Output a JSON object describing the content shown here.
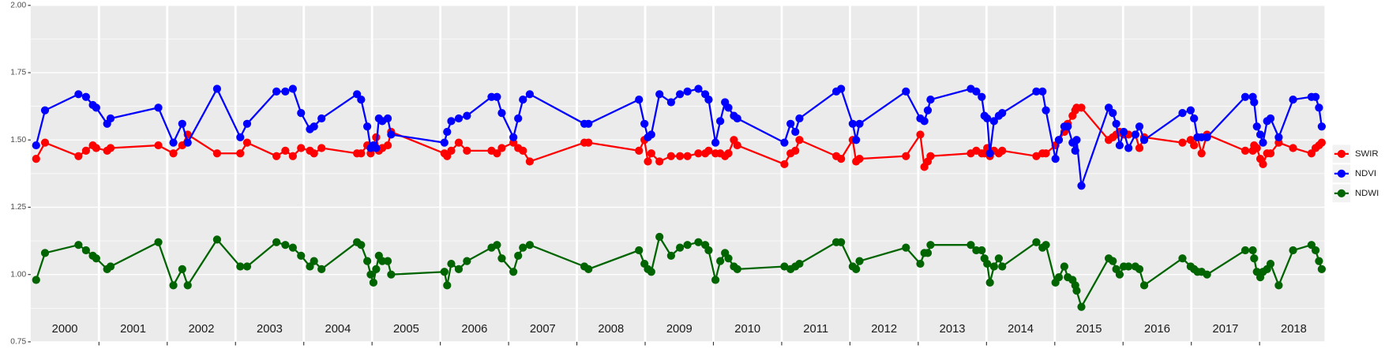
{
  "chart_data": {
    "type": "line",
    "categories": [
      "2000",
      "2001",
      "2002",
      "2003",
      "2004",
      "2005",
      "2006",
      "2007",
      "2008",
      "2009",
      "2010",
      "2011",
      "2012",
      "2013",
      "2014",
      "2015",
      "2016",
      "2017",
      "2018"
    ],
    "x": [
      2000.08,
      2000.21,
      2000.7,
      2000.81,
      2000.91,
      2000.96,
      2001.12,
      2001.17,
      2001.87,
      2002.09,
      2002.22,
      2002.3,
      2002.73,
      2003.07,
      2003.17,
      2003.6,
      2003.73,
      2003.84,
      2003.96,
      2004.09,
      2004.15,
      2004.26,
      2004.78,
      2004.84,
      2004.93,
      2004.98,
      2005.02,
      2005.06,
      2005.1,
      2005.15,
      2005.23,
      2005.28,
      2006.06,
      2006.1,
      2006.16,
      2006.27,
      2006.39,
      2006.75,
      2006.83,
      2006.9,
      2007.07,
      2007.14,
      2007.21,
      2007.31,
      2008.11,
      2008.17,
      2008.91,
      2008.99,
      2009.04,
      2009.09,
      2009.21,
      2009.38,
      2009.51,
      2009.62,
      2009.78,
      2009.88,
      2009.93,
      2010.03,
      2010.1,
      2010.17,
      2010.22,
      2010.3,
      2010.35,
      2011.04,
      2011.13,
      2011.2,
      2011.26,
      2011.8,
      2011.87,
      2012.04,
      2012.09,
      2012.14,
      2012.82,
      2013.03,
      2013.09,
      2013.14,
      2013.18,
      2013.77,
      2013.85,
      2013.93,
      2013.97,
      2014.01,
      2014.05,
      2014.11,
      2014.18,
      2014.23,
      2014.73,
      2014.82,
      2014.87,
      2015.01,
      2015.06,
      2015.14,
      2015.19,
      2015.26,
      2015.3,
      2015.32,
      2015.39,
      2015.79,
      2015.85,
      2015.9,
      2015.95,
      2016.01,
      2016.08,
      2016.18,
      2016.24,
      2016.31,
      2016.87,
      2016.99,
      2017.04,
      2017.09,
      2017.15,
      2017.23,
      2017.79,
      2017.9,
      2017.92,
      2017.96,
      2018.01,
      2018.05,
      2018.11,
      2018.16,
      2018.28,
      2018.49,
      2018.76,
      2018.82,
      2018.87,
      2018.91
    ],
    "series": [
      {
        "name": "SWIR",
        "color": "#ff0000",
        "values": [
          1.43,
          1.49,
          1.44,
          1.46,
          1.48,
          1.47,
          1.46,
          1.47,
          1.48,
          1.45,
          1.48,
          1.52,
          1.45,
          1.45,
          1.49,
          1.44,
          1.46,
          1.44,
          1.47,
          1.46,
          1.45,
          1.47,
          1.45,
          1.45,
          1.48,
          1.45,
          1.48,
          1.51,
          1.46,
          1.47,
          1.48,
          1.53,
          1.45,
          1.44,
          1.46,
          1.49,
          1.46,
          1.46,
          1.45,
          1.47,
          1.49,
          1.47,
          1.46,
          1.42,
          1.49,
          1.49,
          1.46,
          1.5,
          1.42,
          1.45,
          1.42,
          1.44,
          1.44,
          1.44,
          1.45,
          1.45,
          1.46,
          1.45,
          1.45,
          1.44,
          1.45,
          1.5,
          1.48,
          1.41,
          1.45,
          1.46,
          1.5,
          1.44,
          1.43,
          1.5,
          1.42,
          1.43,
          1.44,
          1.52,
          1.4,
          1.42,
          1.44,
          1.45,
          1.46,
          1.45,
          1.45,
          1.47,
          1.44,
          1.46,
          1.45,
          1.46,
          1.44,
          1.45,
          1.45,
          1.48,
          1.5,
          1.53,
          1.56,
          1.59,
          1.61,
          1.62,
          1.62,
          1.5,
          1.51,
          1.52,
          1.53,
          1.52,
          1.52,
          1.52,
          1.47,
          1.51,
          1.49,
          1.5,
          1.48,
          1.51,
          1.45,
          1.52,
          1.46,
          1.46,
          1.48,
          1.47,
          1.43,
          1.41,
          1.45,
          1.45,
          1.49,
          1.47,
          1.45,
          1.47,
          1.48,
          1.49
        ]
      },
      {
        "name": "NDVI",
        "color": "#0000ff",
        "values": [
          1.48,
          1.61,
          1.67,
          1.66,
          1.63,
          1.62,
          1.56,
          1.58,
          1.62,
          1.49,
          1.56,
          1.49,
          1.69,
          1.51,
          1.56,
          1.68,
          1.68,
          1.69,
          1.6,
          1.54,
          1.55,
          1.58,
          1.67,
          1.65,
          1.55,
          1.47,
          1.48,
          1.47,
          1.58,
          1.57,
          1.58,
          1.52,
          1.49,
          1.53,
          1.57,
          1.58,
          1.59,
          1.66,
          1.66,
          1.6,
          1.51,
          1.58,
          1.65,
          1.67,
          1.56,
          1.56,
          1.65,
          1.56,
          1.51,
          1.52,
          1.67,
          1.64,
          1.67,
          1.68,
          1.69,
          1.67,
          1.65,
          1.49,
          1.57,
          1.64,
          1.62,
          1.59,
          1.58,
          1.49,
          1.56,
          1.53,
          1.58,
          1.68,
          1.69,
          1.56,
          1.5,
          1.56,
          1.68,
          1.58,
          1.57,
          1.61,
          1.65,
          1.69,
          1.68,
          1.66,
          1.59,
          1.58,
          1.45,
          1.57,
          1.59,
          1.6,
          1.68,
          1.68,
          1.61,
          1.43,
          1.5,
          1.55,
          1.55,
          1.49,
          1.46,
          1.5,
          1.33,
          1.62,
          1.6,
          1.56,
          1.48,
          1.53,
          1.47,
          1.52,
          1.55,
          1.5,
          1.6,
          1.61,
          1.58,
          1.51,
          1.51,
          1.51,
          1.66,
          1.66,
          1.64,
          1.55,
          1.52,
          1.49,
          1.57,
          1.58,
          1.51,
          1.65,
          1.66,
          1.66,
          1.62,
          1.55
        ]
      },
      {
        "name": "NDWI",
        "color": "#006400",
        "values": [
          0.98,
          1.08,
          1.11,
          1.09,
          1.07,
          1.06,
          1.02,
          1.03,
          1.12,
          0.96,
          1.02,
          0.96,
          1.13,
          1.03,
          1.03,
          1.12,
          1.11,
          1.1,
          1.07,
          1.03,
          1.05,
          1.02,
          1.12,
          1.11,
          1.05,
          1.0,
          0.97,
          1.02,
          1.07,
          1.05,
          1.05,
          1.0,
          1.01,
          0.96,
          1.04,
          1.02,
          1.05,
          1.1,
          1.11,
          1.06,
          1.01,
          1.07,
          1.1,
          1.11,
          1.03,
          1.02,
          1.09,
          1.04,
          1.02,
          1.01,
          1.14,
          1.07,
          1.1,
          1.11,
          1.12,
          1.11,
          1.09,
          0.98,
          1.05,
          1.08,
          1.06,
          1.03,
          1.02,
          1.03,
          1.02,
          1.03,
          1.04,
          1.12,
          1.12,
          1.03,
          1.02,
          1.05,
          1.1,
          1.04,
          1.08,
          1.08,
          1.11,
          1.11,
          1.09,
          1.09,
          1.06,
          1.04,
          0.97,
          1.03,
          1.06,
          1.03,
          1.12,
          1.1,
          1.11,
          0.97,
          0.99,
          1.03,
          0.99,
          0.98,
          0.96,
          0.94,
          0.88,
          1.06,
          1.05,
          1.02,
          1.0,
          1.03,
          1.03,
          1.03,
          1.02,
          0.96,
          1.06,
          1.03,
          1.02,
          1.01,
          1.01,
          1.0,
          1.09,
          1.09,
          1.06,
          1.01,
          0.99,
          1.01,
          1.02,
          1.04,
          0.96,
          1.09,
          1.11,
          1.09,
          1.05,
          1.02
        ]
      }
    ],
    "xlim": [
      2000,
      2018.95
    ],
    "xticks": [
      2001,
      2002,
      2003,
      2004,
      2005,
      2006,
      2007,
      2008,
      2009,
      2010,
      2011,
      2012,
      2013,
      2014,
      2015,
      2016,
      2017,
      2018
    ],
    "ylim": [
      0.75,
      2
    ],
    "yticks": [
      {
        "value": 0.75,
        "label": "0.75"
      },
      {
        "value": 1,
        "label": "1.00"
      },
      {
        "value": 1.25,
        "label": "1.25"
      },
      {
        "value": 1.5,
        "label": "1.50"
      },
      {
        "value": 1.75,
        "label": "1.75"
      },
      {
        "value": 2,
        "label": "2.00"
      }
    ],
    "grid": true,
    "legend": "right"
  }
}
